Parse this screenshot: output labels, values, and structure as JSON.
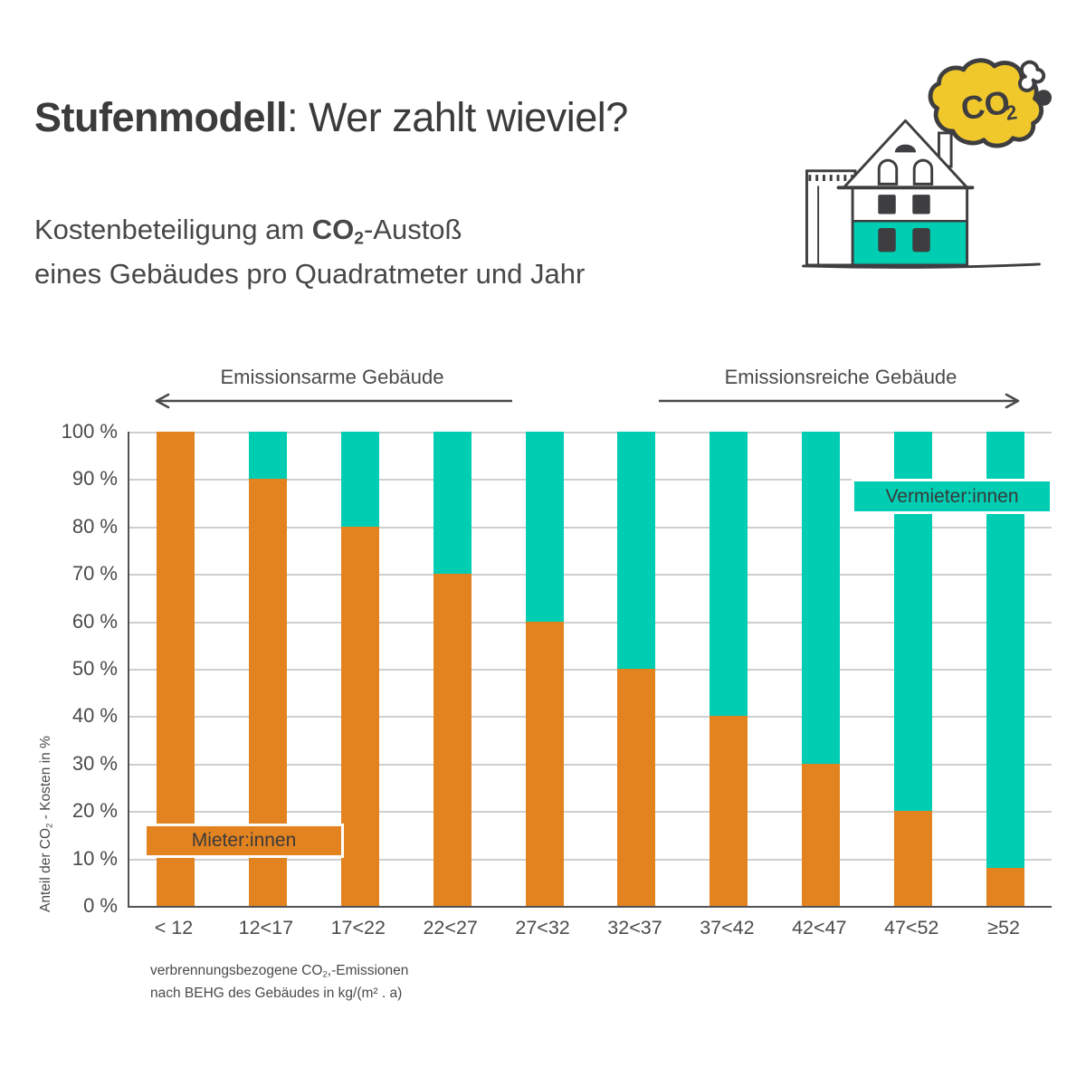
{
  "header": {
    "title_bold": "Stufenmodell",
    "title_rest": ": Wer zahlt wieviel?",
    "subtitle_line1_prefix": "Kostenbeteiligung am ",
    "subtitle_co2_base": "CO",
    "subtitle_co2_sub": "2",
    "subtitle_line1_suffix": "-Austoß",
    "subtitle_line2": "eines Gebäudes pro Quadratmeter und Jahr"
  },
  "illustration": {
    "name": "house-with-co2-cloud",
    "cloud_text_base": "CO",
    "cloud_text_sub": "2",
    "colors": {
      "house_accent_teal": "#00cdb1",
      "cloud_yellow": "#f0c82b",
      "outline_dark": "#3e3d40",
      "window_dark": "#3e3d40"
    }
  },
  "annotations": {
    "left_arrow_label": "Emissionsarme Gebäude",
    "right_arrow_label": "Emissionsreiche Gebäude"
  },
  "chart_data": {
    "type": "bar",
    "stacked": true,
    "categories": [
      "< 12",
      "12<17",
      "17<22",
      "22<27",
      "27<32",
      "32<37",
      "37<42",
      "42<47",
      "47<52",
      "≥52"
    ],
    "series": [
      {
        "name": "Mieter:innen",
        "color": "#e28320",
        "values": [
          100,
          90,
          80,
          70,
          60,
          50,
          40,
          30,
          20,
          8
        ]
      },
      {
        "name": "Vermieter:innen",
        "color": "#00cdb1",
        "values": [
          0,
          10,
          20,
          30,
          40,
          50,
          60,
          70,
          80,
          92
        ]
      }
    ],
    "ylabel": "Anteil der CO₂ - Kosten in %",
    "ylabel_parts": {
      "prefix": "Anteil der CO",
      "sub": "2",
      "suffix": " - Kosten in %"
    },
    "y_ticks": [
      "100 %",
      "90 %",
      "80 %",
      "70 %",
      "60 %",
      "50 %",
      "40 %",
      "30 %",
      "20 %",
      "10 %",
      "0 %"
    ],
    "ylim": [
      0,
      100
    ],
    "grid": true,
    "legend_position": "on-chart-labels",
    "xlabel": "verbrennungsbezogene CO₂,-Emissionen nach BEHG des Gebäudes in kg/(m² . a)",
    "xlabel_parts": {
      "line1_prefix": "verbrennungsbezogene CO",
      "line1_sub": "2",
      "line1_suffix": ",-Emissionen",
      "line2": "nach BEHG des Gebäudes in kg/(m² . a)"
    }
  }
}
